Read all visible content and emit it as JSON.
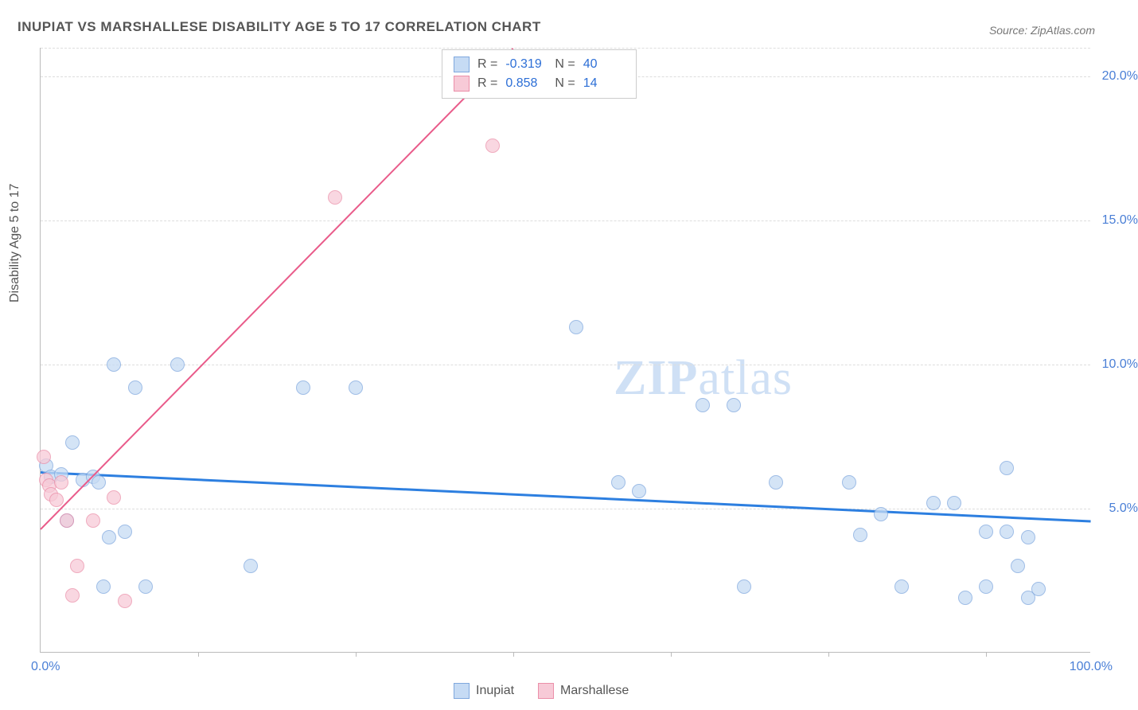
{
  "title": "INUPIAT VS MARSHALLESE DISABILITY AGE 5 TO 17 CORRELATION CHART",
  "source": "Source: ZipAtlas.com",
  "ylabel": "Disability Age 5 to 17",
  "watermark_bold": "ZIP",
  "watermark_rest": "atlas",
  "xaxis": {
    "min": 0,
    "max": 100,
    "tick_labels": [
      "0.0%",
      "100.0%"
    ],
    "minor_ticks": [
      15,
      30,
      45,
      60,
      75,
      90
    ]
  },
  "yaxis": {
    "min": 0,
    "max": 21,
    "grid": [
      5,
      10,
      15,
      20
    ],
    "tick_labels": [
      "5.0%",
      "10.0%",
      "15.0%",
      "20.0%"
    ]
  },
  "colors": {
    "inupiat_fill": "#c6dbf4",
    "inupiat_stroke": "#7fa8de",
    "inupiat_line": "#2d7fe0",
    "marshallese_fill": "#f7cad7",
    "marshallese_stroke": "#eb8fa9",
    "marshallese_line": "#e95b8a",
    "tick_text": "#4a7fd6",
    "grid": "#dddddd",
    "text": "#555555"
  },
  "series": [
    {
      "name": "Inupiat",
      "color_fill": "#c6dbf4",
      "color_stroke": "#7fa8de",
      "trend": {
        "x1": 0,
        "y1": 6.3,
        "x2": 100,
        "y2": 4.6,
        "color": "#2d7fe0",
        "width": 2.5
      },
      "points": [
        {
          "x": 0.5,
          "y": 6.5
        },
        {
          "x": 1,
          "y": 6.1
        },
        {
          "x": 2,
          "y": 6.2
        },
        {
          "x": 2.5,
          "y": 4.6
        },
        {
          "x": 3,
          "y": 7.3
        },
        {
          "x": 4,
          "y": 6.0
        },
        {
          "x": 5,
          "y": 6.1
        },
        {
          "x": 5.5,
          "y": 5.9
        },
        {
          "x": 6,
          "y": 2.3
        },
        {
          "x": 6.5,
          "y": 4.0
        },
        {
          "x": 7,
          "y": 10.0
        },
        {
          "x": 8,
          "y": 4.2
        },
        {
          "x": 9,
          "y": 9.2
        },
        {
          "x": 10,
          "y": 2.3
        },
        {
          "x": 13,
          "y": 10.0
        },
        {
          "x": 20,
          "y": 3.0
        },
        {
          "x": 25,
          "y": 9.2
        },
        {
          "x": 30,
          "y": 9.2
        },
        {
          "x": 51,
          "y": 11.3
        },
        {
          "x": 55,
          "y": 5.9
        },
        {
          "x": 57,
          "y": 5.6
        },
        {
          "x": 63,
          "y": 8.6
        },
        {
          "x": 66,
          "y": 8.6
        },
        {
          "x": 67,
          "y": 2.3
        },
        {
          "x": 70,
          "y": 5.9
        },
        {
          "x": 77,
          "y": 5.9
        },
        {
          "x": 78,
          "y": 4.1
        },
        {
          "x": 80,
          "y": 4.8
        },
        {
          "x": 82,
          "y": 2.3
        },
        {
          "x": 85,
          "y": 5.2
        },
        {
          "x": 87,
          "y": 5.2
        },
        {
          "x": 88,
          "y": 1.9
        },
        {
          "x": 90,
          "y": 2.3
        },
        {
          "x": 90,
          "y": 4.2
        },
        {
          "x": 92,
          "y": 6.4
        },
        {
          "x": 92,
          "y": 4.2
        },
        {
          "x": 93,
          "y": 3.0
        },
        {
          "x": 94,
          "y": 1.9
        },
        {
          "x": 94,
          "y": 4.0
        },
        {
          "x": 95,
          "y": 2.2
        }
      ]
    },
    {
      "name": "Marshallese",
      "color_fill": "#f7cad7",
      "color_stroke": "#eb8fa9",
      "trend": {
        "x1": 0,
        "y1": 4.3,
        "x2": 45,
        "y2": 21.0,
        "color": "#e95b8a",
        "width": 2
      },
      "points": [
        {
          "x": 0.3,
          "y": 6.8
        },
        {
          "x": 0.5,
          "y": 6.0
        },
        {
          "x": 0.8,
          "y": 5.8
        },
        {
          "x": 1,
          "y": 5.5
        },
        {
          "x": 1.5,
          "y": 5.3
        },
        {
          "x": 2,
          "y": 5.9
        },
        {
          "x": 2.5,
          "y": 4.6
        },
        {
          "x": 3,
          "y": 2.0
        },
        {
          "x": 3.5,
          "y": 3.0
        },
        {
          "x": 5,
          "y": 4.6
        },
        {
          "x": 7,
          "y": 5.4
        },
        {
          "x": 8,
          "y": 1.8
        },
        {
          "x": 28,
          "y": 15.8
        },
        {
          "x": 43,
          "y": 17.6
        }
      ]
    }
  ],
  "stats": [
    {
      "swatch_fill": "#c6dbf4",
      "swatch_stroke": "#7fa8de",
      "r": "-0.319",
      "n": "40"
    },
    {
      "swatch_fill": "#f7cad7",
      "swatch_stroke": "#eb8fa9",
      "r": "0.858",
      "n": "14"
    }
  ],
  "stats_labels": {
    "r": "R =",
    "n": "N ="
  },
  "legend": [
    {
      "label": "Inupiat",
      "fill": "#c6dbf4",
      "stroke": "#7fa8de"
    },
    {
      "label": "Marshallese",
      "fill": "#f7cad7",
      "stroke": "#eb8fa9"
    }
  ]
}
